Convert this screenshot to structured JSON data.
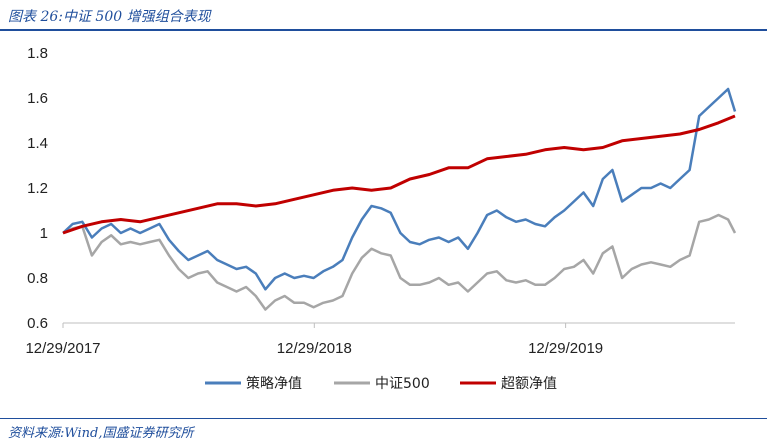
{
  "header": {
    "title": "图表 26:中证 500 增强组合表现"
  },
  "footer": {
    "source": "资料来源:Wind,国盛证券研究所"
  },
  "chart_data": {
    "type": "line",
    "ylim": [
      0.6,
      1.8
    ],
    "yticks": [
      "1.8",
      "1.6",
      "1.4",
      "1.2",
      "1",
      "0.8",
      "0.6"
    ],
    "xticks": [
      "12/29/2017",
      "12/29/2018",
      "12/29/2019"
    ],
    "x_range": [
      "12/29/2017",
      "08/31/2020"
    ],
    "legend_position": "bottom",
    "series": [
      {
        "name": "策略净值",
        "color": "#4a7ebb",
        "points": [
          [
            "2017-12-29",
            1.0
          ],
          [
            "2018-01-12",
            1.04
          ],
          [
            "2018-01-26",
            1.05
          ],
          [
            "2018-02-09",
            0.98
          ],
          [
            "2018-02-23",
            1.02
          ],
          [
            "2018-03-09",
            1.04
          ],
          [
            "2018-03-23",
            1.0
          ],
          [
            "2018-04-06",
            1.02
          ],
          [
            "2018-04-20",
            1.0
          ],
          [
            "2018-05-04",
            1.02
          ],
          [
            "2018-05-18",
            1.04
          ],
          [
            "2018-06-01",
            0.97
          ],
          [
            "2018-06-15",
            0.92
          ],
          [
            "2018-06-29",
            0.88
          ],
          [
            "2018-07-13",
            0.9
          ],
          [
            "2018-07-27",
            0.92
          ],
          [
            "2018-08-10",
            0.88
          ],
          [
            "2018-08-24",
            0.86
          ],
          [
            "2018-09-07",
            0.84
          ],
          [
            "2018-09-21",
            0.85
          ],
          [
            "2018-10-05",
            0.82
          ],
          [
            "2018-10-19",
            0.75
          ],
          [
            "2018-11-02",
            0.8
          ],
          [
            "2018-11-16",
            0.82
          ],
          [
            "2018-11-30",
            0.8
          ],
          [
            "2018-12-14",
            0.81
          ],
          [
            "2018-12-28",
            0.8
          ],
          [
            "2019-01-11",
            0.83
          ],
          [
            "2019-01-25",
            0.85
          ],
          [
            "2019-02-08",
            0.88
          ],
          [
            "2019-02-22",
            0.98
          ],
          [
            "2019-03-08",
            1.06
          ],
          [
            "2019-03-22",
            1.12
          ],
          [
            "2019-04-05",
            1.11
          ],
          [
            "2019-04-19",
            1.09
          ],
          [
            "2019-05-03",
            1.0
          ],
          [
            "2019-05-17",
            0.96
          ],
          [
            "2019-05-31",
            0.95
          ],
          [
            "2019-06-14",
            0.97
          ],
          [
            "2019-06-28",
            0.98
          ],
          [
            "2019-07-12",
            0.96
          ],
          [
            "2019-07-26",
            0.98
          ],
          [
            "2019-08-09",
            0.93
          ],
          [
            "2019-08-23",
            1.0
          ],
          [
            "2019-09-06",
            1.08
          ],
          [
            "2019-09-20",
            1.1
          ],
          [
            "2019-10-04",
            1.07
          ],
          [
            "2019-10-18",
            1.05
          ],
          [
            "2019-11-01",
            1.06
          ],
          [
            "2019-11-15",
            1.04
          ],
          [
            "2019-11-29",
            1.03
          ],
          [
            "2019-12-13",
            1.07
          ],
          [
            "2019-12-27",
            1.1
          ],
          [
            "2020-01-10",
            1.14
          ],
          [
            "2020-01-24",
            1.18
          ],
          [
            "2020-02-07",
            1.12
          ],
          [
            "2020-02-21",
            1.24
          ],
          [
            "2020-03-06",
            1.28
          ],
          [
            "2020-03-20",
            1.14
          ],
          [
            "2020-04-03",
            1.17
          ],
          [
            "2020-04-17",
            1.2
          ],
          [
            "2020-05-01",
            1.2
          ],
          [
            "2020-05-15",
            1.22
          ],
          [
            "2020-05-29",
            1.2
          ],
          [
            "2020-06-12",
            1.24
          ],
          [
            "2020-06-26",
            1.28
          ],
          [
            "2020-07-10",
            1.52
          ],
          [
            "2020-07-24",
            1.56
          ],
          [
            "2020-08-07",
            1.6
          ],
          [
            "2020-08-21",
            1.64
          ],
          [
            "2020-08-31",
            1.54
          ]
        ]
      },
      {
        "name": "中证500",
        "color": "#a6a6a6",
        "points": [
          [
            "2017-12-29",
            1.0
          ],
          [
            "2018-01-12",
            1.02
          ],
          [
            "2018-01-26",
            1.03
          ],
          [
            "2018-02-09",
            0.9
          ],
          [
            "2018-02-23",
            0.96
          ],
          [
            "2018-03-09",
            0.99
          ],
          [
            "2018-03-23",
            0.95
          ],
          [
            "2018-04-06",
            0.96
          ],
          [
            "2018-04-20",
            0.95
          ],
          [
            "2018-05-04",
            0.96
          ],
          [
            "2018-05-18",
            0.97
          ],
          [
            "2018-06-01",
            0.9
          ],
          [
            "2018-06-15",
            0.84
          ],
          [
            "2018-06-29",
            0.8
          ],
          [
            "2018-07-13",
            0.82
          ],
          [
            "2018-07-27",
            0.83
          ],
          [
            "2018-08-10",
            0.78
          ],
          [
            "2018-08-24",
            0.76
          ],
          [
            "2018-09-07",
            0.74
          ],
          [
            "2018-09-21",
            0.76
          ],
          [
            "2018-10-05",
            0.72
          ],
          [
            "2018-10-19",
            0.66
          ],
          [
            "2018-11-02",
            0.7
          ],
          [
            "2018-11-16",
            0.72
          ],
          [
            "2018-11-30",
            0.69
          ],
          [
            "2018-12-14",
            0.69
          ],
          [
            "2018-12-28",
            0.67
          ],
          [
            "2019-01-11",
            0.69
          ],
          [
            "2019-01-25",
            0.7
          ],
          [
            "2019-02-08",
            0.72
          ],
          [
            "2019-02-22",
            0.82
          ],
          [
            "2019-03-08",
            0.89
          ],
          [
            "2019-03-22",
            0.93
          ],
          [
            "2019-04-05",
            0.91
          ],
          [
            "2019-04-19",
            0.9
          ],
          [
            "2019-05-03",
            0.8
          ],
          [
            "2019-05-17",
            0.77
          ],
          [
            "2019-05-31",
            0.77
          ],
          [
            "2019-06-14",
            0.78
          ],
          [
            "2019-06-28",
            0.8
          ],
          [
            "2019-07-12",
            0.77
          ],
          [
            "2019-07-26",
            0.78
          ],
          [
            "2019-08-09",
            0.74
          ],
          [
            "2019-08-23",
            0.78
          ],
          [
            "2019-09-06",
            0.82
          ],
          [
            "2019-09-20",
            0.83
          ],
          [
            "2019-10-04",
            0.79
          ],
          [
            "2019-10-18",
            0.78
          ],
          [
            "2019-11-01",
            0.79
          ],
          [
            "2019-11-15",
            0.77
          ],
          [
            "2019-11-29",
            0.77
          ],
          [
            "2019-12-13",
            0.8
          ],
          [
            "2019-12-27",
            0.84
          ],
          [
            "2020-01-10",
            0.85
          ],
          [
            "2020-01-24",
            0.88
          ],
          [
            "2020-02-07",
            0.82
          ],
          [
            "2020-02-21",
            0.91
          ],
          [
            "2020-03-06",
            0.94
          ],
          [
            "2020-03-20",
            0.8
          ],
          [
            "2020-04-03",
            0.84
          ],
          [
            "2020-04-17",
            0.86
          ],
          [
            "2020-05-01",
            0.87
          ],
          [
            "2020-05-15",
            0.86
          ],
          [
            "2020-05-29",
            0.85
          ],
          [
            "2020-06-12",
            0.88
          ],
          [
            "2020-06-26",
            0.9
          ],
          [
            "2020-07-10",
            1.05
          ],
          [
            "2020-07-24",
            1.06
          ],
          [
            "2020-08-07",
            1.08
          ],
          [
            "2020-08-21",
            1.06
          ],
          [
            "2020-08-31",
            1.0
          ]
        ]
      },
      {
        "name": "超额净值",
        "color": "#c00000",
        "points": [
          [
            "2017-12-29",
            1.0
          ],
          [
            "2018-01-26",
            1.03
          ],
          [
            "2018-02-23",
            1.05
          ],
          [
            "2018-03-23",
            1.06
          ],
          [
            "2018-04-20",
            1.05
          ],
          [
            "2018-05-18",
            1.07
          ],
          [
            "2018-06-15",
            1.09
          ],
          [
            "2018-07-13",
            1.11
          ],
          [
            "2018-08-10",
            1.13
          ],
          [
            "2018-09-07",
            1.13
          ],
          [
            "2018-10-05",
            1.12
          ],
          [
            "2018-11-02",
            1.13
          ],
          [
            "2018-11-30",
            1.15
          ],
          [
            "2018-12-28",
            1.17
          ],
          [
            "2019-01-25",
            1.19
          ],
          [
            "2019-02-22",
            1.2
          ],
          [
            "2019-03-22",
            1.19
          ],
          [
            "2019-04-19",
            1.2
          ],
          [
            "2019-05-17",
            1.24
          ],
          [
            "2019-06-14",
            1.26
          ],
          [
            "2019-07-12",
            1.29
          ],
          [
            "2019-08-09",
            1.29
          ],
          [
            "2019-09-06",
            1.33
          ],
          [
            "2019-10-04",
            1.34
          ],
          [
            "2019-11-01",
            1.35
          ],
          [
            "2019-11-29",
            1.37
          ],
          [
            "2019-12-27",
            1.38
          ],
          [
            "2020-01-24",
            1.37
          ],
          [
            "2020-02-21",
            1.38
          ],
          [
            "2020-03-20",
            1.41
          ],
          [
            "2020-04-17",
            1.42
          ],
          [
            "2020-05-15",
            1.43
          ],
          [
            "2020-06-12",
            1.44
          ],
          [
            "2020-07-10",
            1.46
          ],
          [
            "2020-08-07",
            1.49
          ],
          [
            "2020-08-31",
            1.52
          ]
        ]
      }
    ]
  }
}
